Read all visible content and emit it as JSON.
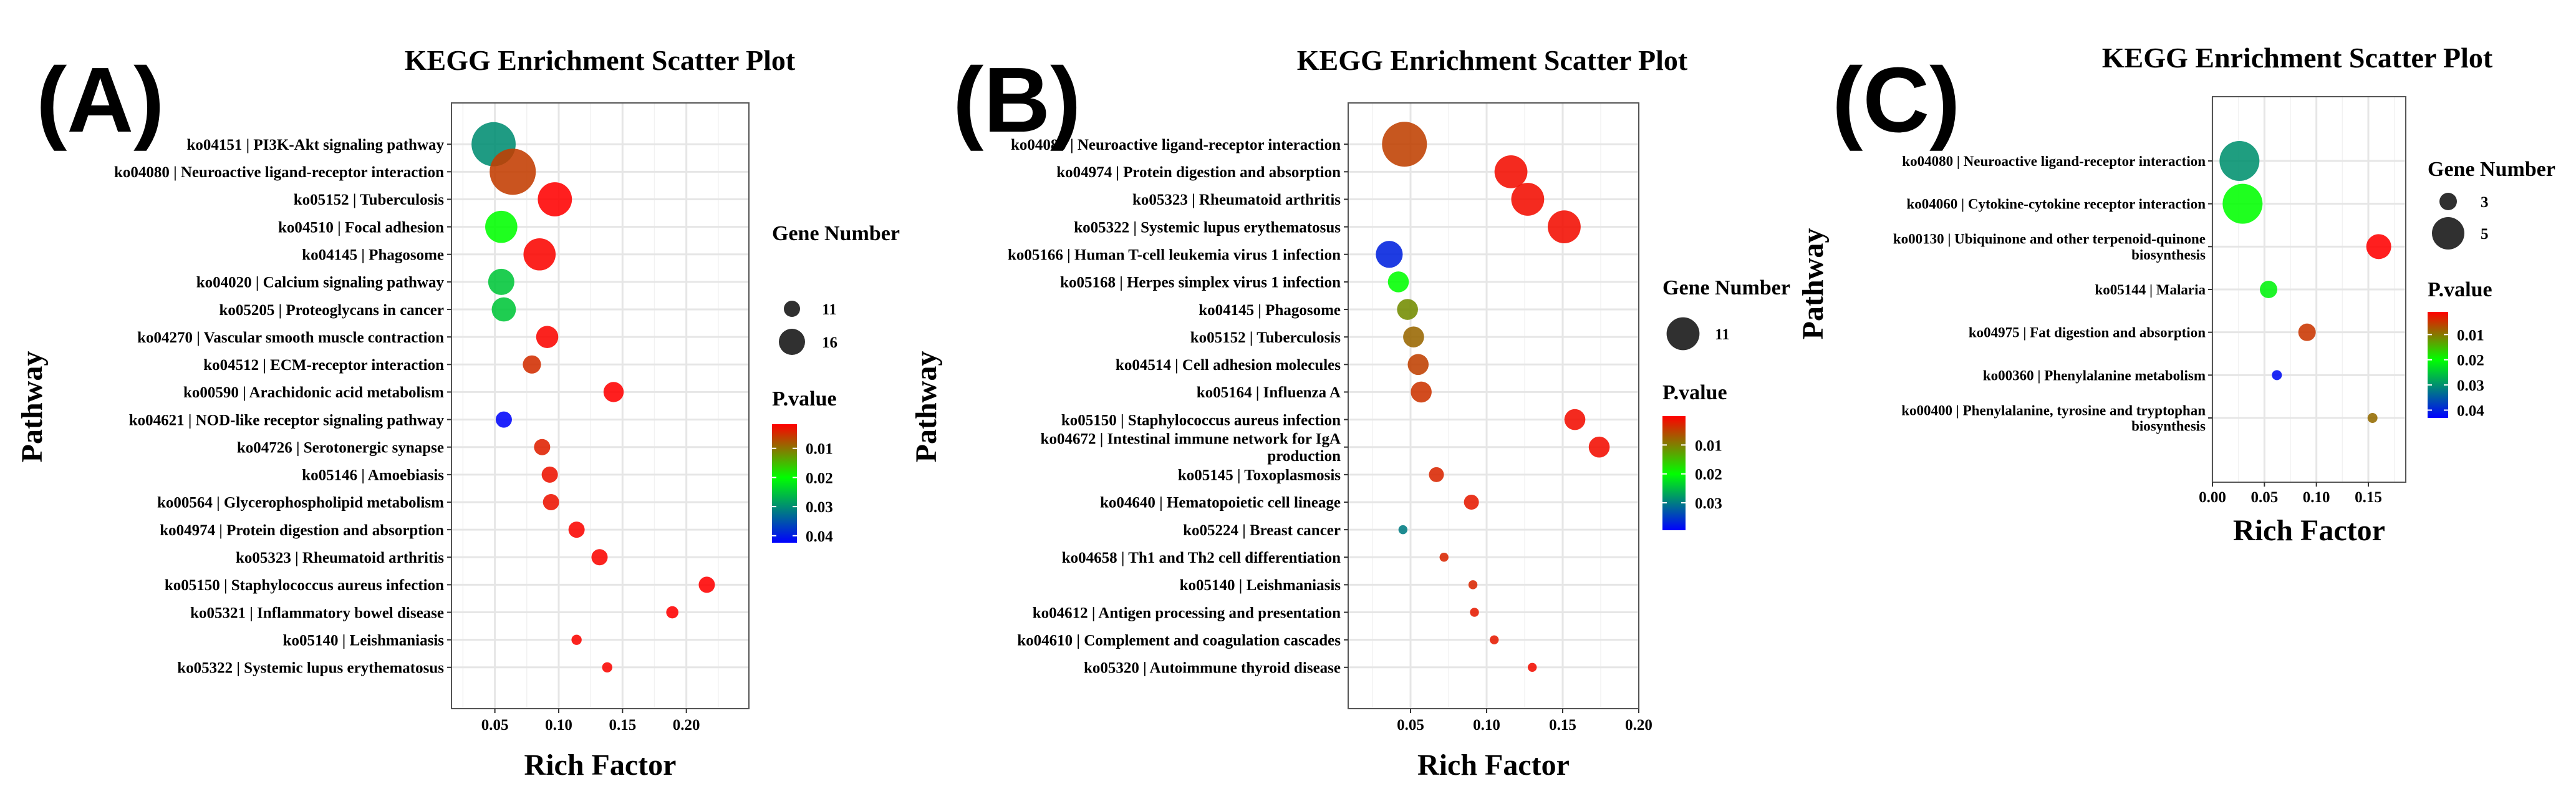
{
  "chart_data": [
    {
      "panel_label": "(A)",
      "type": "scatter",
      "title": "KEGG Enrichment Scatter Plot",
      "xlabel": "Rich Factor",
      "ylabel": "Pathway",
      "xlim": [
        0.016,
        0.249
      ],
      "xticks": [
        0.05,
        0.1,
        0.15,
        0.2
      ],
      "xtick_labels": [
        "0.05",
        "0.10",
        "0.15",
        "0.20"
      ],
      "grid": true,
      "size_legend": {
        "title": "Gene Number",
        "values": [
          11,
          16
        ],
        "labels": [
          "11",
          "16"
        ]
      },
      "color_legend": {
        "title": "P.value",
        "range": [
          0.0017,
          0.0424
        ],
        "ticks": [
          0.01,
          0.02,
          0.03,
          0.04
        ],
        "labels": [
          "0.01",
          "0.02",
          "0.03",
          "0.04"
        ],
        "low_color": "#ff0000",
        "mid_color": "#00ff00",
        "high_color": "#0000ff"
      },
      "legend_position": "right",
      "points": [
        {
          "pathway": "ko04151 | PI3K-Akt signaling pathway",
          "rich_factor": 0.049,
          "gene_number": 25,
          "p_value": 0.03
        },
        {
          "pathway": "ko04080 | Neuroactive ligand-receptor interaction",
          "rich_factor": 0.064,
          "gene_number": 26,
          "p_value": 0.006
        },
        {
          "pathway": "ko05152 | Tuberculosis",
          "rich_factor": 0.097,
          "gene_number": 20,
          "p_value": 0.001
        },
        {
          "pathway": "ko04510 | Focal adhesion",
          "rich_factor": 0.055,
          "gene_number": 19,
          "p_value": 0.02
        },
        {
          "pathway": "ko04145 | Phagosome",
          "rich_factor": 0.085,
          "gene_number": 19,
          "p_value": 0.002
        },
        {
          "pathway": "ko04020 | Calcium signaling pathway",
          "rich_factor": 0.055,
          "gene_number": 16,
          "p_value": 0.025
        },
        {
          "pathway": "ko05205 | Proteoglycans in cancer",
          "rich_factor": 0.057,
          "gene_number": 15,
          "p_value": 0.025
        },
        {
          "pathway": "ko04270 | Vascular smooth muscle contraction",
          "rich_factor": 0.091,
          "gene_number": 14,
          "p_value": 0.002
        },
        {
          "pathway": "ko04512 | ECM-receptor interaction",
          "rich_factor": 0.079,
          "gene_number": 12,
          "p_value": 0.005
        },
        {
          "pathway": "ko00590 | Arachidonic acid metabolism",
          "rich_factor": 0.143,
          "gene_number": 13,
          "p_value": 0.001
        },
        {
          "pathway": "ko04621 | NOD-like receptor signaling pathway",
          "rich_factor": 0.057,
          "gene_number": 11,
          "p_value": 0.042
        },
        {
          "pathway": "ko04726 | Serotonergic synapse",
          "rich_factor": 0.087,
          "gene_number": 11,
          "p_value": 0.004
        },
        {
          "pathway": "ko05146 | Amoebiasis",
          "rich_factor": 0.093,
          "gene_number": 11,
          "p_value": 0.003
        },
        {
          "pathway": "ko00564 | Glycerophospholipid metabolism",
          "rich_factor": 0.094,
          "gene_number": 11,
          "p_value": 0.003
        },
        {
          "pathway": "ko04974 | Protein digestion and absorption",
          "rich_factor": 0.114,
          "gene_number": 11,
          "p_value": 0.002
        },
        {
          "pathway": "ko05323 | Rheumatoid arthritis",
          "rich_factor": 0.132,
          "gene_number": 11,
          "p_value": 0.002
        },
        {
          "pathway": "ko05150 | Staphylococcus aureus infection",
          "rich_factor": 0.216,
          "gene_number": 11,
          "p_value": 0.001
        },
        {
          "pathway": "ko05321 | Inflammatory bowel disease",
          "rich_factor": 0.189,
          "gene_number": 9,
          "p_value": 0.001
        },
        {
          "pathway": "ko05140 | Leishmaniasis",
          "rich_factor": 0.114,
          "gene_number": 8,
          "p_value": 0.002
        },
        {
          "pathway": "ko05322 | Systemic lupus erythematosus",
          "rich_factor": 0.138,
          "gene_number": 8,
          "p_value": 0.002
        }
      ]
    },
    {
      "panel_label": "(B)",
      "type": "scatter",
      "title": "KEGG Enrichment Scatter Plot",
      "xlabel": "Rich Factor",
      "ylabel": "Pathway",
      "xlim": [
        0.009,
        0.2
      ],
      "xticks": [
        0.05,
        0.1,
        0.15,
        0.2
      ],
      "xtick_labels": [
        "0.05",
        "0.10",
        "0.15",
        "0.20"
      ],
      "grid": true,
      "size_legend": {
        "title": "Gene Number",
        "values": [
          11
        ],
        "labels": [
          "11"
        ]
      },
      "color_legend": {
        "title": "P.value",
        "range": [
          0.0,
          0.0395
        ],
        "ticks": [
          0.01,
          0.02,
          0.03
        ],
        "labels": [
          "0.01",
          "0.02",
          "0.03"
        ],
        "low_color": "#ff0000",
        "mid_color": "#00ff00",
        "high_color": "#0000ff"
      },
      "legend_position": "right",
      "points": [
        {
          "pathway": "ko04080 | Neuroactive ligand-receptor interaction",
          "rich_factor": 0.046,
          "gene_number": 15,
          "p_value": 0.005
        },
        {
          "pathway": "ko04974 | Protein digestion and absorption",
          "rich_factor": 0.116,
          "gene_number": 11,
          "p_value": 0.001
        },
        {
          "pathway": "ko05323 | Rheumatoid arthritis",
          "rich_factor": 0.127,
          "gene_number": 11,
          "p_value": 0.001
        },
        {
          "pathway": "ko05322 | Systemic lupus erythematosus",
          "rich_factor": 0.151,
          "gene_number": 11,
          "p_value": 0.001
        },
        {
          "pathway": "ko05166 | Human T-cell leukemia virus 1 infection",
          "rich_factor": 0.036,
          "gene_number": 9,
          "p_value": 0.037
        },
        {
          "pathway": "ko05168 | Herpes simplex virus 1 infection",
          "rich_factor": 0.042,
          "gene_number": 7,
          "p_value": 0.02
        },
        {
          "pathway": "ko04145 | Phagosome",
          "rich_factor": 0.048,
          "gene_number": 7,
          "p_value": 0.011
        },
        {
          "pathway": "ko05152 | Tuberculosis",
          "rich_factor": 0.052,
          "gene_number": 7,
          "p_value": 0.008
        },
        {
          "pathway": "ko04514 | Cell adhesion molecules",
          "rich_factor": 0.055,
          "gene_number": 7,
          "p_value": 0.005
        },
        {
          "pathway": "ko05164 | Influenza A",
          "rich_factor": 0.057,
          "gene_number": 7,
          "p_value": 0.004
        },
        {
          "pathway": "ko05150 | Staphylococcus aureus infection",
          "rich_factor": 0.158,
          "gene_number": 7,
          "p_value": 0.001
        },
        {
          "pathway": "ko04672 | Intestinal immune network for IgA production",
          "rich_factor": 0.174,
          "gene_number": 7,
          "p_value": 0.001
        },
        {
          "pathway": "ko05145 | Toxoplasmosis",
          "rich_factor": 0.067,
          "gene_number": 5,
          "p_value": 0.003
        },
        {
          "pathway": "ko04640 | Hematopoietic cell lineage",
          "rich_factor": 0.09,
          "gene_number": 5,
          "p_value": 0.002
        },
        {
          "pathway": "ko05224 | Breast cancer",
          "rich_factor": 0.045,
          "gene_number": 3,
          "p_value": 0.03
        },
        {
          "pathway": "ko04658 | Th1 and Th2 cell differentiation",
          "rich_factor": 0.072,
          "gene_number": 3,
          "p_value": 0.003
        },
        {
          "pathway": "ko05140 | Leishmaniasis",
          "rich_factor": 0.091,
          "gene_number": 3,
          "p_value": 0.003
        },
        {
          "pathway": "ko04612 | Antigen processing and presentation",
          "rich_factor": 0.092,
          "gene_number": 3,
          "p_value": 0.002
        },
        {
          "pathway": "ko04610 | Complement and coagulation cascades",
          "rich_factor": 0.105,
          "gene_number": 3,
          "p_value": 0.002
        },
        {
          "pathway": "ko05320 | Autoimmune thyroid disease",
          "rich_factor": 0.13,
          "gene_number": 3,
          "p_value": 0.001
        }
      ]
    },
    {
      "panel_label": "(C)",
      "type": "scatter",
      "title": "KEGG Enrichment Scatter Plot",
      "xlabel": "Rich Factor",
      "ylabel": "Pathway",
      "xlim": [
        0.0,
        0.186
      ],
      "xticks": [
        0.0,
        0.05,
        0.1,
        0.15
      ],
      "xtick_labels": [
        "0.00",
        "0.05",
        "0.10",
        "0.15"
      ],
      "grid": true,
      "size_legend": {
        "title": "Gene Number",
        "values": [
          3,
          5
        ],
        "labels": [
          "3",
          "5"
        ]
      },
      "color_legend": {
        "title": "P.value",
        "range": [
          0.001,
          0.0431
        ],
        "ticks": [
          0.01,
          0.02,
          0.03,
          0.04
        ],
        "labels": [
          "0.01",
          "0.02",
          "0.03",
          "0.04"
        ],
        "low_color": "#ff0000",
        "mid_color": "#00ff00",
        "high_color": "#0000ff"
      },
      "legend_position": "right",
      "points": [
        {
          "pathway": "ko04080 | Neuroactive ligand-receptor interaction",
          "rich_factor": 0.026,
          "gene_number": 6,
          "p_value": 0.03
        },
        {
          "pathway": "ko04060 | Cytokine-cytokine receptor interaction",
          "rich_factor": 0.029,
          "gene_number": 6,
          "p_value": 0.02
        },
        {
          "pathway": "ko00130 | Ubiquinone and other terpenoid-quinone biosynthesis",
          "rich_factor": 0.16,
          "gene_number": 4,
          "p_value": 0.001
        },
        {
          "pathway": "ko05144 | Malaria",
          "rich_factor": 0.054,
          "gene_number": 3,
          "p_value": 0.021
        },
        {
          "pathway": "ko04975 | Fat digestion and absorption",
          "rich_factor": 0.091,
          "gene_number": 3,
          "p_value": 0.005
        },
        {
          "pathway": "ko00360 | Phenylalanine metabolism",
          "rich_factor": 0.062,
          "gene_number": 2,
          "p_value": 0.042
        },
        {
          "pathway": "ko00400 | Phenylalanine, tyrosine and tryptophan biosynthesis",
          "rich_factor": 0.154,
          "gene_number": 2,
          "p_value": 0.009
        }
      ]
    }
  ]
}
